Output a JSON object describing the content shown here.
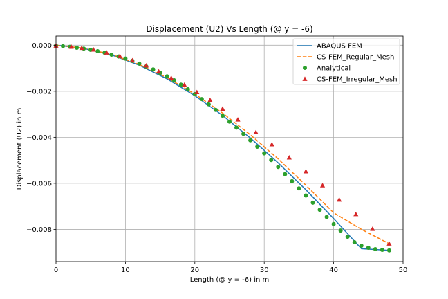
{
  "chart_data": {
    "type": "line",
    "title": "Displacement (U2) Vs Length (@ y = -6)",
    "xlabel": "Length (@ y = -6) in m",
    "ylabel": "Displacement (U2) in m",
    "xlim": [
      0,
      50
    ],
    "ylim": [
      -0.0094,
      0.0004
    ],
    "xticks": [
      0,
      10,
      20,
      30,
      40,
      50
    ],
    "xtick_labels": [
      "0",
      "10",
      "20",
      "30",
      "40",
      "50"
    ],
    "yticks": [
      0.0,
      -0.002,
      -0.004,
      -0.006,
      -0.008
    ],
    "ytick_labels": [
      "0.000",
      "−0.002",
      "−0.004",
      "−0.006",
      "−0.008"
    ],
    "grid": true,
    "legend_position": "top-right",
    "series": [
      {
        "name": "ABAQUS FEM",
        "style": "solid-line",
        "color": "#1f77b4",
        "x": [
          0,
          4,
          8,
          12,
          16,
          20,
          24,
          28,
          32,
          36,
          40,
          44,
          48
        ],
        "y": [
          0,
          -0.00014,
          -0.00042,
          -0.00087,
          -0.00146,
          -0.00219,
          -0.00305,
          -0.00403,
          -0.00511,
          -0.00628,
          -0.00753,
          -0.00884,
          -0.00891
        ]
      },
      {
        "name": "CS-FEM_Regular_Mesh",
        "style": "dashed-line",
        "color": "#ff7f0e",
        "x": [
          0,
          4,
          8,
          12,
          16,
          20,
          24,
          28,
          32,
          36,
          40,
          44,
          48
        ],
        "y": [
          0,
          -0.00013,
          -0.0004,
          -0.00084,
          -0.00141,
          -0.00212,
          -0.00295,
          -0.00389,
          -0.00494,
          -0.00608,
          -0.00728,
          -0.008,
          -0.00862
        ]
      },
      {
        "name": "Analytical",
        "style": "circle-markers",
        "color": "#2ca02c",
        "x": [
          0,
          1,
          2,
          3,
          4,
          5,
          6,
          7,
          8,
          9,
          10,
          11,
          12,
          13,
          14,
          15,
          16,
          17,
          18,
          19,
          20,
          21,
          22,
          23,
          24,
          25,
          26,
          27,
          28,
          29,
          30,
          31,
          32,
          33,
          34,
          35,
          36,
          37,
          38,
          39,
          40,
          41,
          42,
          43,
          44,
          45,
          46,
          47,
          48
        ],
        "y": [
          -2e-05,
          -4e-05,
          -7e-05,
          -0.00011,
          -0.00015,
          -0.0002,
          -0.00026,
          -0.00033,
          -0.00041,
          -0.00049,
          -0.00058,
          -0.00068,
          -0.0008,
          -0.00092,
          -0.00105,
          -0.0012,
          -0.00135,
          -0.00152,
          -0.00171,
          -0.00191,
          -0.00212,
          -0.00234,
          -0.00257,
          -0.00281,
          -0.00306,
          -0.00332,
          -0.00358,
          -0.00385,
          -0.00413,
          -0.00441,
          -0.0047,
          -0.00499,
          -0.00529,
          -0.0056,
          -0.00591,
          -0.00622,
          -0.00653,
          -0.00684,
          -0.00715,
          -0.00746,
          -0.00777,
          -0.00805,
          -0.00832,
          -0.00856,
          -0.00871,
          -0.0088,
          -0.00886,
          -0.00889,
          -0.00891
        ]
      },
      {
        "name": "CS-FEM_Irregular_Mesh",
        "style": "triangle-markers",
        "color": "#d62728",
        "x": [
          0,
          2.2,
          3.7,
          5.4,
          7.3,
          9.2,
          11.0,
          13.0,
          14.8,
          16.6,
          18.5,
          20.3,
          22.2,
          24.0,
          26.2,
          28.8,
          31.1,
          33.6,
          36.0,
          38.4,
          40.8,
          43.2,
          45.6,
          48.0
        ],
        "y": [
          -2e-05,
          -7e-05,
          -0.00012,
          -0.00019,
          -0.00032,
          -0.00047,
          -0.00066,
          -0.00088,
          -0.00114,
          -0.00142,
          -0.00172,
          -0.00204,
          -0.00238,
          -0.00276,
          -0.00323,
          -0.00378,
          -0.00431,
          -0.00488,
          -0.00548,
          -0.00609,
          -0.00671,
          -0.00734,
          -0.00798,
          -0.00862
        ]
      }
    ]
  }
}
